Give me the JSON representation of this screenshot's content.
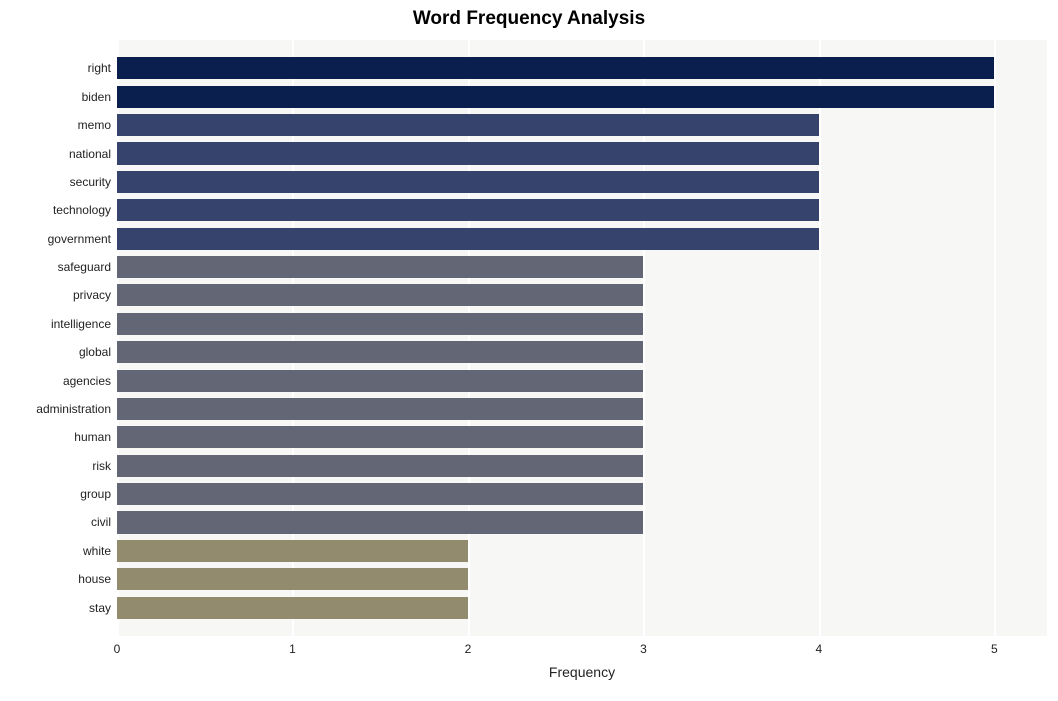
{
  "chart": {
    "type": "bar-horizontal",
    "title": "Word Frequency Analysis",
    "title_fontsize": 19,
    "title_weight": "bold",
    "x_axis_title": "Frequency",
    "x_axis_title_fontsize": 14,
    "tick_fontsize": 12,
    "category_fontsize": 12,
    "background_color": "#ffffff",
    "plot_background_color": "#f7f7f5",
    "grid_color": "#ffffff",
    "xlim": [
      0,
      5.3
    ],
    "xticks": [
      0,
      1,
      2,
      3,
      4,
      5
    ],
    "bar_fill_ratio": 0.78,
    "categories": [
      "right",
      "biden",
      "memo",
      "national",
      "security",
      "technology",
      "government",
      "safeguard",
      "privacy",
      "intelligence",
      "global",
      "agencies",
      "administration",
      "human",
      "risk",
      "group",
      "civil",
      "white",
      "house",
      "stay"
    ],
    "values": [
      5,
      5,
      4,
      4,
      4,
      4,
      4,
      3,
      3,
      3,
      3,
      3,
      3,
      3,
      3,
      3,
      3,
      2,
      2,
      2
    ],
    "bar_colors": [
      "#0a1f4d",
      "#0a1f4d",
      "#36436c",
      "#36436c",
      "#36436c",
      "#36436c",
      "#36436c",
      "#626675",
      "#626675",
      "#626675",
      "#626675",
      "#626675",
      "#626675",
      "#626675",
      "#626675",
      "#626675",
      "#626675",
      "#938b6e",
      "#938b6e",
      "#938b6e"
    ]
  }
}
